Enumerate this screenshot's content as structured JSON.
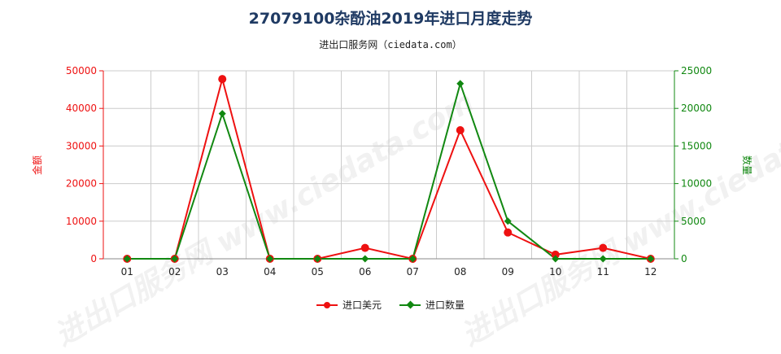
{
  "header": {
    "title": "27079100杂酚油2019年进口月度走势",
    "subtitle": "进出口服务网（ciedata.com）"
  },
  "watermark": "进出口服务网 www.ciedata.com",
  "colors": {
    "value_series": "#ee1111",
    "quantity_series": "#118811",
    "grid": "#cccccc"
  },
  "chart_data": {
    "type": "line",
    "categories": [
      "01",
      "02",
      "03",
      "04",
      "05",
      "06",
      "07",
      "08",
      "09",
      "10",
      "11",
      "12"
    ],
    "y_left": {
      "label": "金额",
      "ylim": [
        0,
        50000
      ],
      "ticks": [
        0,
        10000,
        20000,
        30000,
        40000,
        50000
      ],
      "color": "#ee1111"
    },
    "y_right": {
      "label": "数量",
      "ylim": [
        0,
        25000
      ],
      "ticks": [
        0,
        5000,
        10000,
        15000,
        20000,
        25000
      ],
      "color": "#118811"
    },
    "series": [
      {
        "name": "进口美元",
        "axis": "left",
        "marker": "circle",
        "color": "#ee1111",
        "values": [
          0,
          0,
          47800,
          0,
          0,
          2900,
          0,
          34200,
          7000,
          1100,
          2900,
          0
        ]
      },
      {
        "name": "进口数量",
        "axis": "right",
        "marker": "diamond",
        "color": "#118811",
        "values": [
          0,
          0,
          19300,
          0,
          0,
          0,
          0,
          23300,
          5000,
          0,
          0,
          0
        ]
      }
    ],
    "grid": true,
    "legend": "bottom-center"
  }
}
